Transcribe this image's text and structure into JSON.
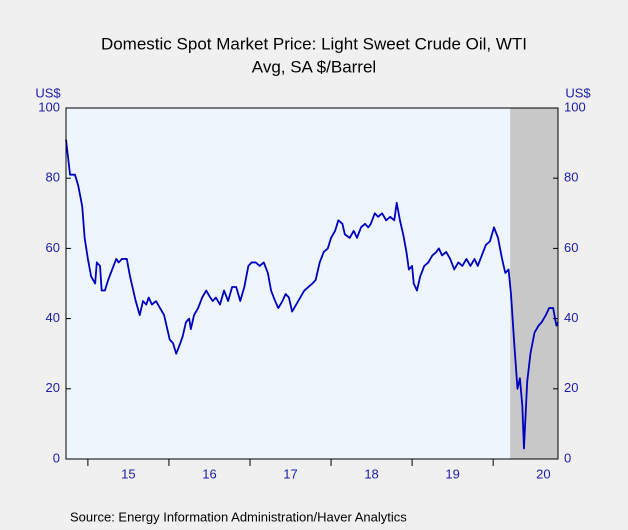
{
  "chart_data": {
    "type": "line",
    "title": "Domestic Spot Market Price: Light Sweet Crude Oil, WTI",
    "subtitle": "Avg, SA $/Barrel",
    "y_label": "US$",
    "y2_label": "US$",
    "source": "Source:  Energy Information Administration/Haver Analytics",
    "color": "#0000c0",
    "shaded_range": [
      2020.21,
      2020.8
    ],
    "x": [
      2014.73,
      2014.78,
      2014.84,
      2014.88,
      2014.93,
      2014.96,
      2015.0,
      2015.04,
      2015.09,
      2015.11,
      2015.15,
      2015.17,
      2015.21,
      2015.25,
      2015.3,
      2015.35,
      2015.38,
      2015.42,
      2015.48,
      2015.52,
      2015.56,
      2015.59,
      2015.64,
      2015.68,
      2015.72,
      2015.75,
      2015.79,
      2015.84,
      2015.89,
      2015.94,
      2015.98,
      2016.01,
      2016.05,
      2016.09,
      2016.14,
      2016.17,
      2016.21,
      2016.25,
      2016.27,
      2016.31,
      2016.36,
      2016.41,
      2016.46,
      2016.51,
      2016.54,
      2016.58,
      2016.63,
      2016.68,
      2016.73,
      2016.78,
      2016.83,
      2016.88,
      2016.93,
      2016.98,
      2017.02,
      2017.07,
      2017.12,
      2017.17,
      2017.22,
      2017.26,
      2017.31,
      2017.35,
      2017.4,
      2017.44,
      2017.48,
      2017.52,
      2017.57,
      2017.62,
      2017.67,
      2017.72,
      2017.77,
      2017.81,
      2017.86,
      2017.91,
      2017.96,
      2018.0,
      2018.05,
      2018.09,
      2018.14,
      2018.17,
      2018.23,
      2018.28,
      2018.32,
      2018.37,
      2018.42,
      2018.46,
      2018.49,
      2018.54,
      2018.58,
      2018.63,
      2018.68,
      2018.73,
      2018.78,
      2018.81,
      2018.85,
      2018.89,
      2018.93,
      2018.96,
      2019.0,
      2019.02,
      2019.06,
      2019.1,
      2019.15,
      2019.2,
      2019.25,
      2019.3,
      2019.33,
      2019.37,
      2019.42,
      2019.47,
      2019.52,
      2019.57,
      2019.62,
      2019.67,
      2019.72,
      2019.77,
      2019.81,
      2019.86,
      2019.91,
      2019.96,
      2020.01,
      2020.06,
      2020.11,
      2020.15,
      2020.19,
      2020.22,
      2020.26,
      2020.3,
      2020.33,
      2020.36,
      2020.38,
      2020.42,
      2020.46,
      2020.51,
      2020.56,
      2020.6,
      2020.65,
      2020.69,
      2020.74,
      2020.78,
      2020.8
    ],
    "values": [
      91,
      81,
      81,
      78,
      72,
      63,
      57,
      52,
      50,
      56,
      55,
      48,
      48,
      51,
      54,
      57,
      56,
      57,
      57,
      52,
      48,
      45,
      41,
      45,
      44,
      46,
      44,
      45,
      43,
      41,
      37,
      34,
      33,
      30,
      33,
      35,
      39,
      40,
      37,
      41,
      43,
      46,
      48,
      46,
      45,
      46,
      44,
      48,
      45,
      49,
      49,
      45,
      49,
      55,
      56,
      56,
      55,
      56,
      53,
      48,
      45,
      43,
      45,
      47,
      46,
      42,
      44,
      46,
      48,
      49,
      50,
      51,
      56,
      59,
      60,
      63,
      65,
      68,
      67,
      64,
      63,
      65,
      63,
      66,
      67,
      66,
      67,
      70,
      69,
      70,
      68,
      69,
      68,
      73,
      68,
      64,
      59,
      54,
      55,
      50,
      48,
      52,
      55,
      56,
      58,
      59,
      60,
      58,
      59,
      57,
      54,
      56,
      55,
      57,
      55,
      57,
      55,
      58,
      61,
      62,
      66,
      63,
      57,
      53,
      54,
      47,
      33,
      20,
      23,
      15,
      3,
      22,
      30,
      36,
      38,
      39,
      41,
      43,
      43,
      38,
      39
    ],
    "xlim": [
      2014.73,
      2020.8
    ],
    "xticks": [
      {
        "value": 2015.5,
        "label": "15"
      },
      {
        "value": 2016.5,
        "label": "16"
      },
      {
        "value": 2017.5,
        "label": "17"
      },
      {
        "value": 2018.5,
        "label": "18"
      },
      {
        "value": 2019.5,
        "label": "19"
      },
      {
        "value": 2020.62,
        "label": "20"
      }
    ],
    "xticks_minor": [
      2015,
      2016,
      2017,
      2018,
      2019,
      2020
    ],
    "ylim": [
      0,
      100
    ],
    "yticks": [
      0,
      20,
      40,
      60,
      80,
      100
    ],
    "y2lim": [
      0,
      100
    ],
    "y2ticks": [
      0,
      20,
      40,
      60,
      80,
      100
    ]
  }
}
